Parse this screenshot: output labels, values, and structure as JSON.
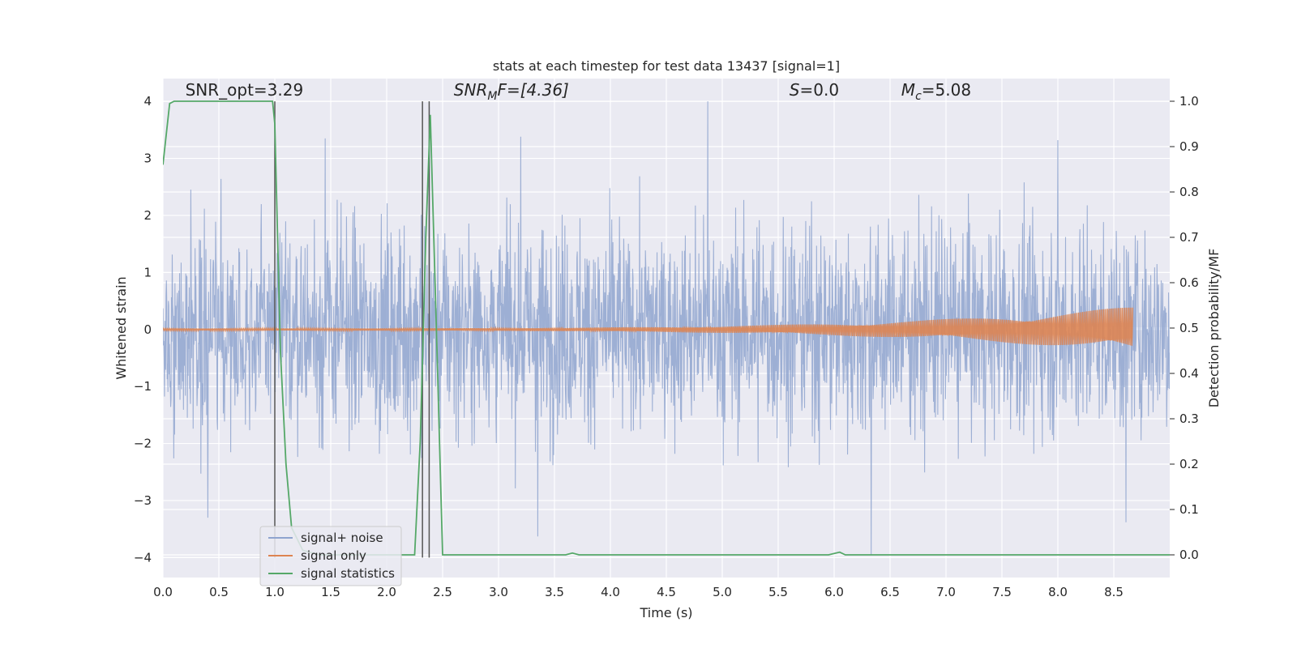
{
  "chart_data": {
    "type": "line",
    "title": "stats at each timestep for test data 13437 [signal=1]",
    "xlabel": "Time (s)",
    "ylabel_left": "Whitened strain",
    "ylabel_right": "Detection probability/MF",
    "xlim": [
      0.0,
      9.0
    ],
    "ylim_left": [
      -4.35,
      4.4
    ],
    "ylim_right": [
      -0.05,
      1.05
    ],
    "x_ticks": [
      0.0,
      0.5,
      1.0,
      1.5,
      2.0,
      2.5,
      3.0,
      3.5,
      4.0,
      4.5,
      5.0,
      5.5,
      6.0,
      6.5,
      7.0,
      7.5,
      8.0,
      8.5
    ],
    "x_tick_labels": [
      "0.0",
      "0.5",
      "1.0",
      "1.5",
      "2.0",
      "2.5",
      "3.0",
      "3.5",
      "4.0",
      "4.5",
      "5.0",
      "5.5",
      "6.0",
      "6.5",
      "7.0",
      "7.5",
      "8.0",
      "8.5"
    ],
    "y_left_ticks": [
      -4,
      -3,
      -2,
      -1,
      0,
      1,
      2,
      3,
      4
    ],
    "y_left_tick_labels": [
      "−4",
      "−3",
      "−2",
      "−1",
      "0",
      "1",
      "2",
      "3",
      "4"
    ],
    "y_right_ticks": [
      0.0,
      0.1,
      0.2,
      0.3,
      0.4,
      0.5,
      0.6,
      0.7,
      0.8,
      0.9,
      1.0
    ],
    "y_right_tick_labels": [
      "0.0",
      "0.1",
      "0.2",
      "0.3",
      "0.4",
      "0.5",
      "0.6",
      "0.7",
      "0.8",
      "0.9",
      "1.0"
    ],
    "grid": true,
    "legend_position": "lower-left",
    "annotations": [
      {
        "id": "snr-opt",
        "x": 0.2,
        "y": 4.1,
        "parts": [
          {
            "text": "SNR_opt=3.29"
          }
        ]
      },
      {
        "id": "snr-mf",
        "x": 2.6,
        "y": 4.1,
        "parts": [
          {
            "text": "SNR",
            "italic": true
          },
          {
            "text": "M",
            "italic": true,
            "sub": true
          },
          {
            "text": "F=[4.36]",
            "italic": true,
            "mixed": true
          }
        ]
      },
      {
        "id": "s-value",
        "x": 5.6,
        "y": 4.1,
        "parts": [
          {
            "text": "S",
            "italic": true
          },
          {
            "text": "=0.0"
          }
        ]
      },
      {
        "id": "mc-value",
        "x": 6.6,
        "y": 4.1,
        "parts": [
          {
            "text": "M",
            "italic": true
          },
          {
            "text": "c",
            "italic": true,
            "sub": true
          },
          {
            "text": "=5.08"
          }
        ]
      }
    ],
    "vertical_markers": [
      1.0,
      2.32,
      2.38
    ],
    "series": [
      {
        "name": "signal+ noise",
        "axis": "left",
        "color": "#8fa4cf",
        "style": "noise",
        "x_range": [
          0.0,
          9.0
        ],
        "envelope_max": 4.0,
        "envelope_min": -3.95,
        "typical_amplitude": 1.7,
        "peaks": [
          {
            "x": 4.87,
            "y": 4.0
          },
          {
            "x": 2.38,
            "y": 3.9
          },
          {
            "x": 6.33,
            "y": -3.95
          },
          {
            "x": 3.2,
            "y": 3.38
          },
          {
            "x": 8.0,
            "y": 3.32
          },
          {
            "x": 1.45,
            "y": 3.35
          },
          {
            "x": 3.35,
            "y": -3.63
          },
          {
            "x": 8.61,
            "y": -3.38
          },
          {
            "x": 0.4,
            "y": -3.3
          }
        ]
      },
      {
        "name": "signal only",
        "axis": "left",
        "color": "#dd8452",
        "style": "chirp",
        "x_range": [
          0.0,
          8.67
        ],
        "amplitude_start": 0.02,
        "amplitude_end": 0.4
      },
      {
        "name": "signal statistics",
        "axis": "right",
        "color": "#55a868",
        "style": "line",
        "x": [
          0.0,
          0.06,
          0.1,
          0.5,
          0.98,
          1.0,
          1.02,
          1.05,
          1.1,
          1.15,
          1.25,
          1.4,
          2.0,
          2.25,
          2.3,
          2.35,
          2.39,
          2.45,
          2.5,
          3.6,
          3.66,
          3.72,
          5.0,
          5.95,
          6.05,
          6.1,
          6.15,
          9.0
        ],
        "y": [
          0.86,
          0.995,
          1.0,
          1.0,
          1.0,
          0.95,
          0.75,
          0.45,
          0.2,
          0.06,
          0.01,
          0.0,
          0.0,
          0.0,
          0.25,
          0.7,
          0.97,
          0.45,
          0.0,
          0.0,
          0.004,
          0.0,
          0.0,
          0.0,
          0.006,
          0.0,
          0.0,
          0.0
        ]
      }
    ]
  }
}
